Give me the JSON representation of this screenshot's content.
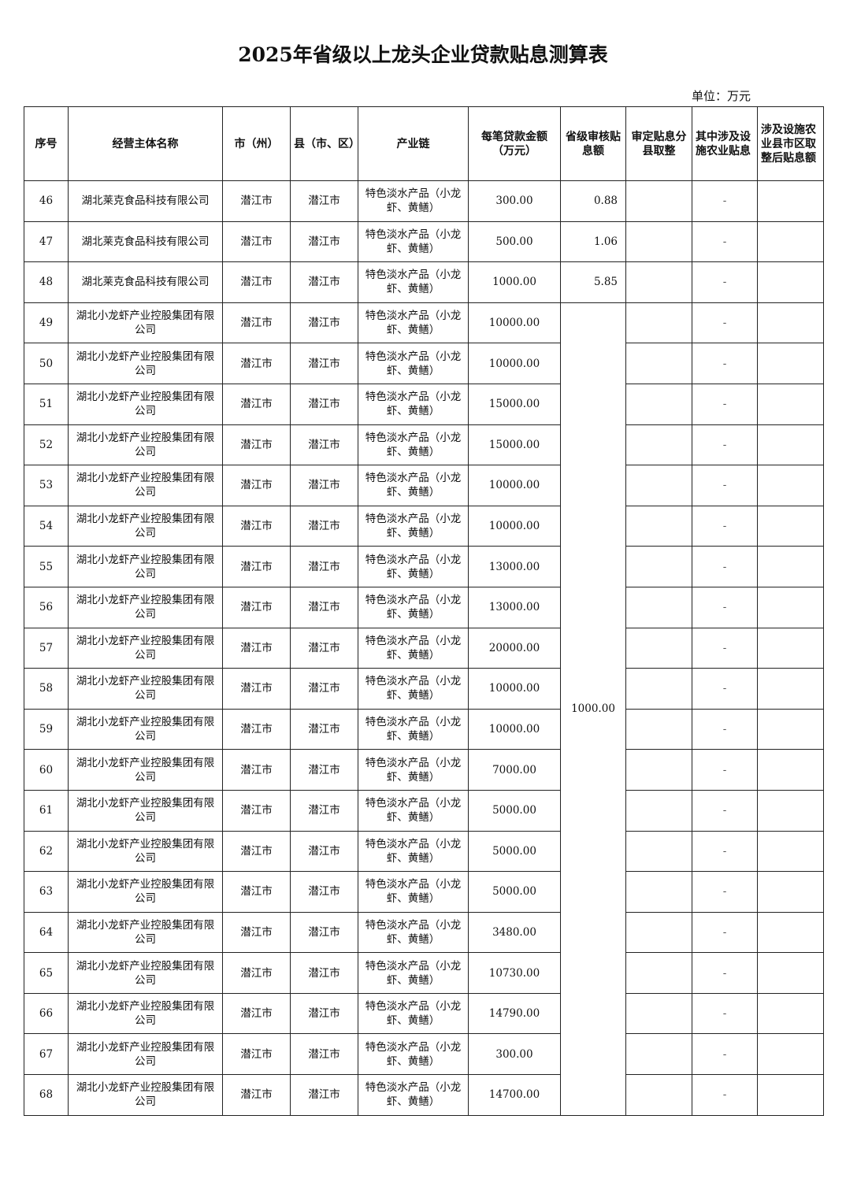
{
  "title": "2025年省级以上龙头企业贷款贴息测算表",
  "unit": "单位：万元",
  "columns": [
    "序号",
    "经营主体名称",
    "市（州）",
    "县（市、区）",
    "产业链",
    "每笔贷款金额（万元）",
    "省级审核贴息额",
    "审定贴息分县取整",
    "其中涉及设施农业贴息",
    "涉及设施农业县市区取整后贴息额"
  ],
  "merged_subsidy": {
    "from": 49,
    "to": 68,
    "value": "1000.00"
  },
  "rows": [
    {
      "no": "46",
      "name": "湖北莱克食品科技有限公司",
      "city": "潜江市",
      "county": "潜江市",
      "chain": "特色淡水产品（小龙虾、黄鳝）",
      "amount": "300.00",
      "subsidy": "0.88",
      "rounded": "",
      "facility": "-",
      "final": ""
    },
    {
      "no": "47",
      "name": "湖北莱克食品科技有限公司",
      "city": "潜江市",
      "county": "潜江市",
      "chain": "特色淡水产品（小龙虾、黄鳝）",
      "amount": "500.00",
      "subsidy": "1.06",
      "rounded": "",
      "facility": "-",
      "final": ""
    },
    {
      "no": "48",
      "name": "湖北莱克食品科技有限公司",
      "city": "潜江市",
      "county": "潜江市",
      "chain": "特色淡水产品（小龙虾、黄鳝）",
      "amount": "1000.00",
      "subsidy": "5.85",
      "rounded": "",
      "facility": "-",
      "final": ""
    },
    {
      "no": "49",
      "name": "湖北小龙虾产业控股集团有限公司",
      "city": "潜江市",
      "county": "潜江市",
      "chain": "特色淡水产品（小龙虾、黄鳝）",
      "amount": "10000.00",
      "rounded": "",
      "facility": "-",
      "final": ""
    },
    {
      "no": "50",
      "name": "湖北小龙虾产业控股集团有限公司",
      "city": "潜江市",
      "county": "潜江市",
      "chain": "特色淡水产品（小龙虾、黄鳝）",
      "amount": "10000.00",
      "rounded": "",
      "facility": "-",
      "final": ""
    },
    {
      "no": "51",
      "name": "湖北小龙虾产业控股集团有限公司",
      "city": "潜江市",
      "county": "潜江市",
      "chain": "特色淡水产品（小龙虾、黄鳝）",
      "amount": "15000.00",
      "rounded": "",
      "facility": "-",
      "final": ""
    },
    {
      "no": "52",
      "name": "湖北小龙虾产业控股集团有限公司",
      "city": "潜江市",
      "county": "潜江市",
      "chain": "特色淡水产品（小龙虾、黄鳝）",
      "amount": "15000.00",
      "rounded": "",
      "facility": "-",
      "final": ""
    },
    {
      "no": "53",
      "name": "湖北小龙虾产业控股集团有限公司",
      "city": "潜江市",
      "county": "潜江市",
      "chain": "特色淡水产品（小龙虾、黄鳝）",
      "amount": "10000.00",
      "rounded": "",
      "facility": "-",
      "final": ""
    },
    {
      "no": "54",
      "name": "湖北小龙虾产业控股集团有限公司",
      "city": "潜江市",
      "county": "潜江市",
      "chain": "特色淡水产品（小龙虾、黄鳝）",
      "amount": "10000.00",
      "rounded": "",
      "facility": "-",
      "final": ""
    },
    {
      "no": "55",
      "name": "湖北小龙虾产业控股集团有限公司",
      "city": "潜江市",
      "county": "潜江市",
      "chain": "特色淡水产品（小龙虾、黄鳝）",
      "amount": "13000.00",
      "rounded": "",
      "facility": "-",
      "final": ""
    },
    {
      "no": "56",
      "name": "湖北小龙虾产业控股集团有限公司",
      "city": "潜江市",
      "county": "潜江市",
      "chain": "特色淡水产品（小龙虾、黄鳝）",
      "amount": "13000.00",
      "rounded": "",
      "facility": "-",
      "final": ""
    },
    {
      "no": "57",
      "name": "湖北小龙虾产业控股集团有限公司",
      "city": "潜江市",
      "county": "潜江市",
      "chain": "特色淡水产品（小龙虾、黄鳝）",
      "amount": "20000.00",
      "rounded": "",
      "facility": "-",
      "final": ""
    },
    {
      "no": "58",
      "name": "湖北小龙虾产业控股集团有限公司",
      "city": "潜江市",
      "county": "潜江市",
      "chain": "特色淡水产品（小龙虾、黄鳝）",
      "amount": "10000.00",
      "rounded": "",
      "facility": "-",
      "final": ""
    },
    {
      "no": "59",
      "name": "湖北小龙虾产业控股集团有限公司",
      "city": "潜江市",
      "county": "潜江市",
      "chain": "特色淡水产品（小龙虾、黄鳝）",
      "amount": "10000.00",
      "rounded": "",
      "facility": "-",
      "final": ""
    },
    {
      "no": "60",
      "name": "湖北小龙虾产业控股集团有限公司",
      "city": "潜江市",
      "county": "潜江市",
      "chain": "特色淡水产品（小龙虾、黄鳝）",
      "amount": "7000.00",
      "rounded": "",
      "facility": "-",
      "final": ""
    },
    {
      "no": "61",
      "name": "湖北小龙虾产业控股集团有限公司",
      "city": "潜江市",
      "county": "潜江市",
      "chain": "特色淡水产品（小龙虾、黄鳝）",
      "amount": "5000.00",
      "rounded": "",
      "facility": "-",
      "final": ""
    },
    {
      "no": "62",
      "name": "湖北小龙虾产业控股集团有限公司",
      "city": "潜江市",
      "county": "潜江市",
      "chain": "特色淡水产品（小龙虾、黄鳝）",
      "amount": "5000.00",
      "rounded": "",
      "facility": "-",
      "final": ""
    },
    {
      "no": "63",
      "name": "湖北小龙虾产业控股集团有限公司",
      "city": "潜江市",
      "county": "潜江市",
      "chain": "特色淡水产品（小龙虾、黄鳝）",
      "amount": "5000.00",
      "rounded": "",
      "facility": "-",
      "final": ""
    },
    {
      "no": "64",
      "name": "湖北小龙虾产业控股集团有限公司",
      "city": "潜江市",
      "county": "潜江市",
      "chain": "特色淡水产品（小龙虾、黄鳝）",
      "amount": "3480.00",
      "rounded": "",
      "facility": "-",
      "final": ""
    },
    {
      "no": "65",
      "name": "湖北小龙虾产业控股集团有限公司",
      "city": "潜江市",
      "county": "潜江市",
      "chain": "特色淡水产品（小龙虾、黄鳝）",
      "amount": "10730.00",
      "rounded": "",
      "facility": "-",
      "final": ""
    },
    {
      "no": "66",
      "name": "湖北小龙虾产业控股集团有限公司",
      "city": "潜江市",
      "county": "潜江市",
      "chain": "特色淡水产品（小龙虾、黄鳝）",
      "amount": "14790.00",
      "rounded": "",
      "facility": "-",
      "final": ""
    },
    {
      "no": "67",
      "name": "湖北小龙虾产业控股集团有限公司",
      "city": "潜江市",
      "county": "潜江市",
      "chain": "特色淡水产品（小龙虾、黄鳝）",
      "amount": "300.00",
      "rounded": "",
      "facility": "-",
      "final": ""
    },
    {
      "no": "68",
      "name": "湖北小龙虾产业控股集团有限公司",
      "city": "潜江市",
      "county": "潜江市",
      "chain": "特色淡水产品（小龙虾、黄鳝）",
      "amount": "14700.00",
      "rounded": "",
      "facility": "-",
      "final": ""
    }
  ]
}
